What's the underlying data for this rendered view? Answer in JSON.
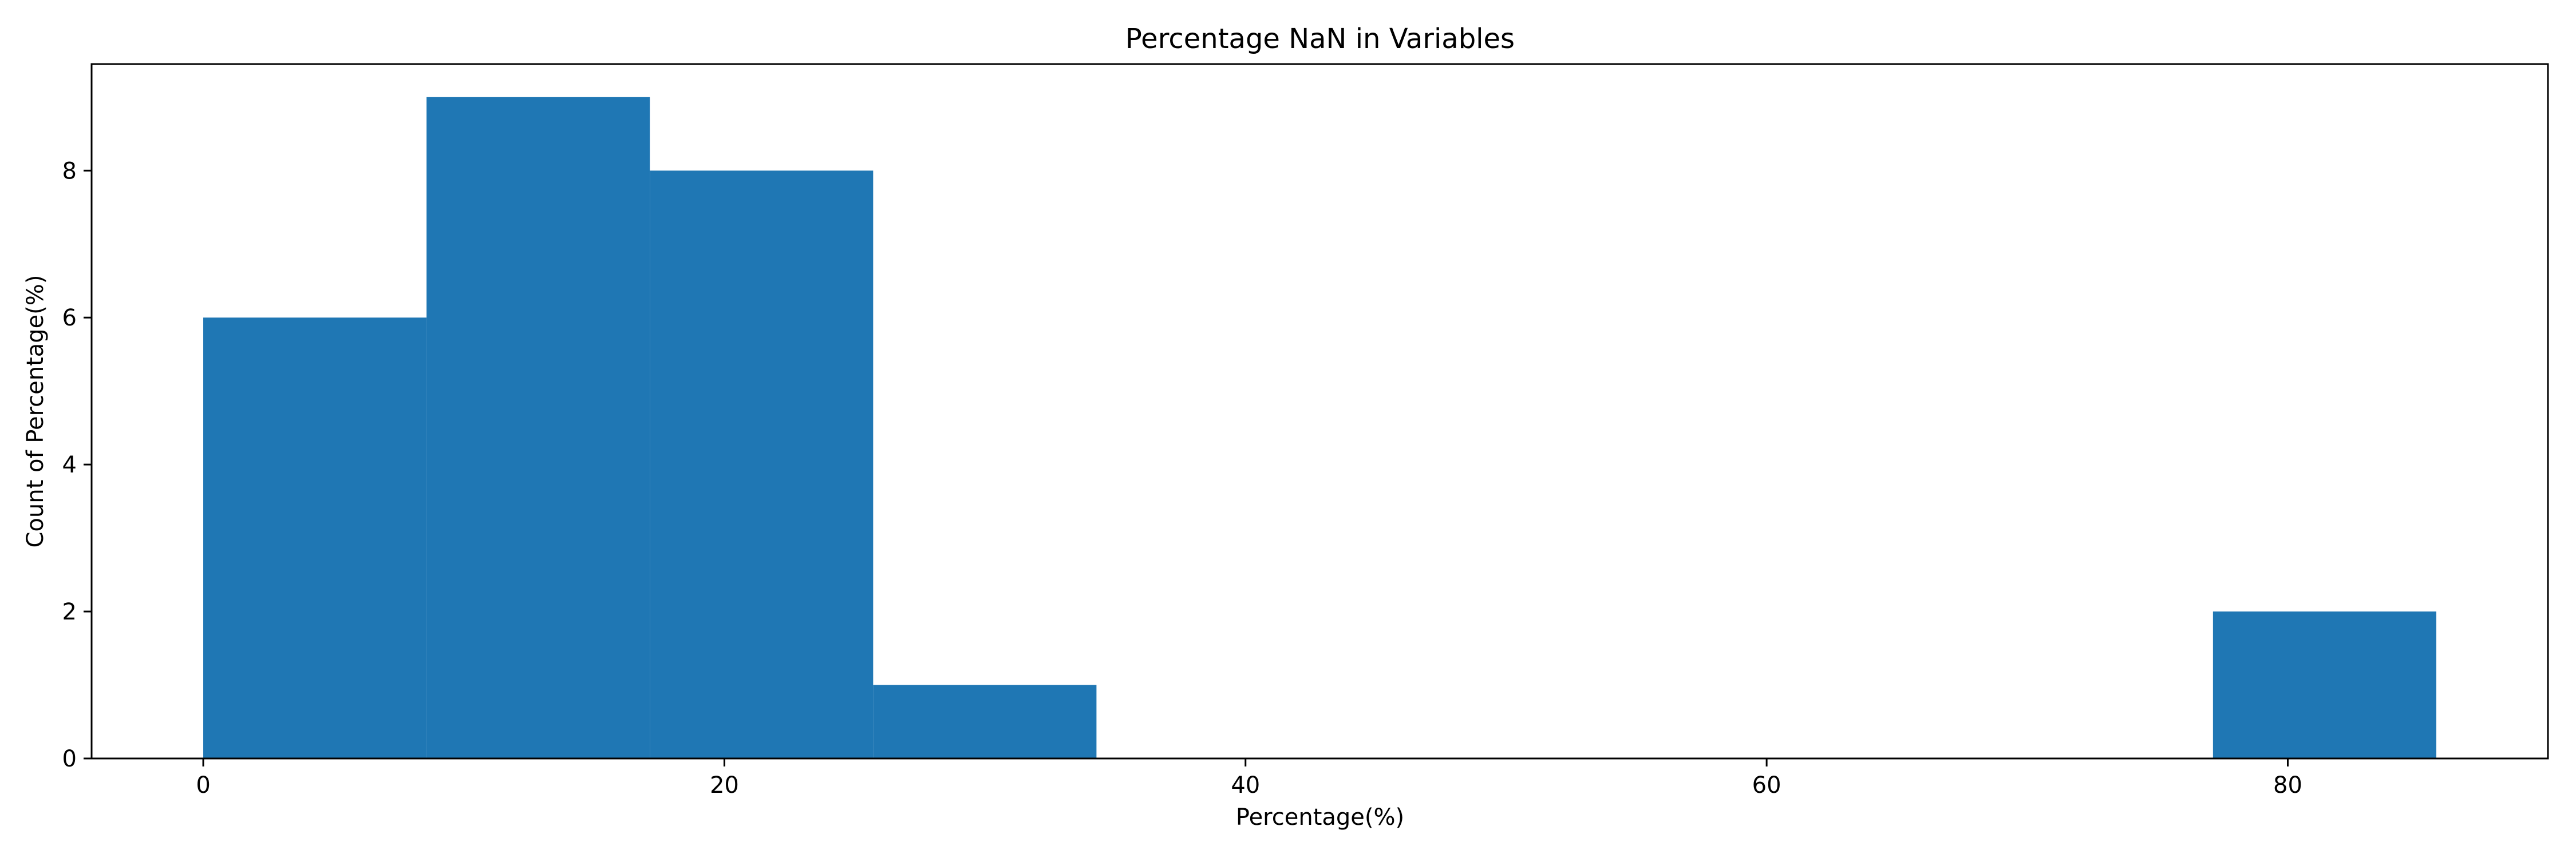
{
  "chart_data": {
    "type": "bar",
    "title": "Percentage NaN in Variables",
    "xlabel": "Percentage(%)",
    "ylabel": "Count of Percentage(%)",
    "bins": [
      {
        "start": 0.0,
        "end": 8.57,
        "count": 6
      },
      {
        "start": 8.57,
        "end": 17.14,
        "count": 9
      },
      {
        "start": 17.14,
        "end": 25.71,
        "count": 8
      },
      {
        "start": 25.71,
        "end": 34.28,
        "count": 1
      },
      {
        "start": 34.28,
        "end": 42.85,
        "count": 0
      },
      {
        "start": 42.85,
        "end": 51.42,
        "count": 0
      },
      {
        "start": 51.42,
        "end": 59.99,
        "count": 0
      },
      {
        "start": 59.99,
        "end": 68.56,
        "count": 0
      },
      {
        "start": 68.56,
        "end": 77.13,
        "count": 0
      },
      {
        "start": 77.13,
        "end": 85.7,
        "count": 2
      }
    ],
    "xlim": [
      -4.285,
      89.985
    ],
    "ylim": [
      0,
      9.45
    ],
    "xticks": [
      0,
      20,
      40,
      60,
      80
    ],
    "yticks": [
      0,
      2,
      4,
      6,
      8
    ],
    "bar_color": "#1f77b4",
    "grid": false,
    "legend": "none"
  }
}
